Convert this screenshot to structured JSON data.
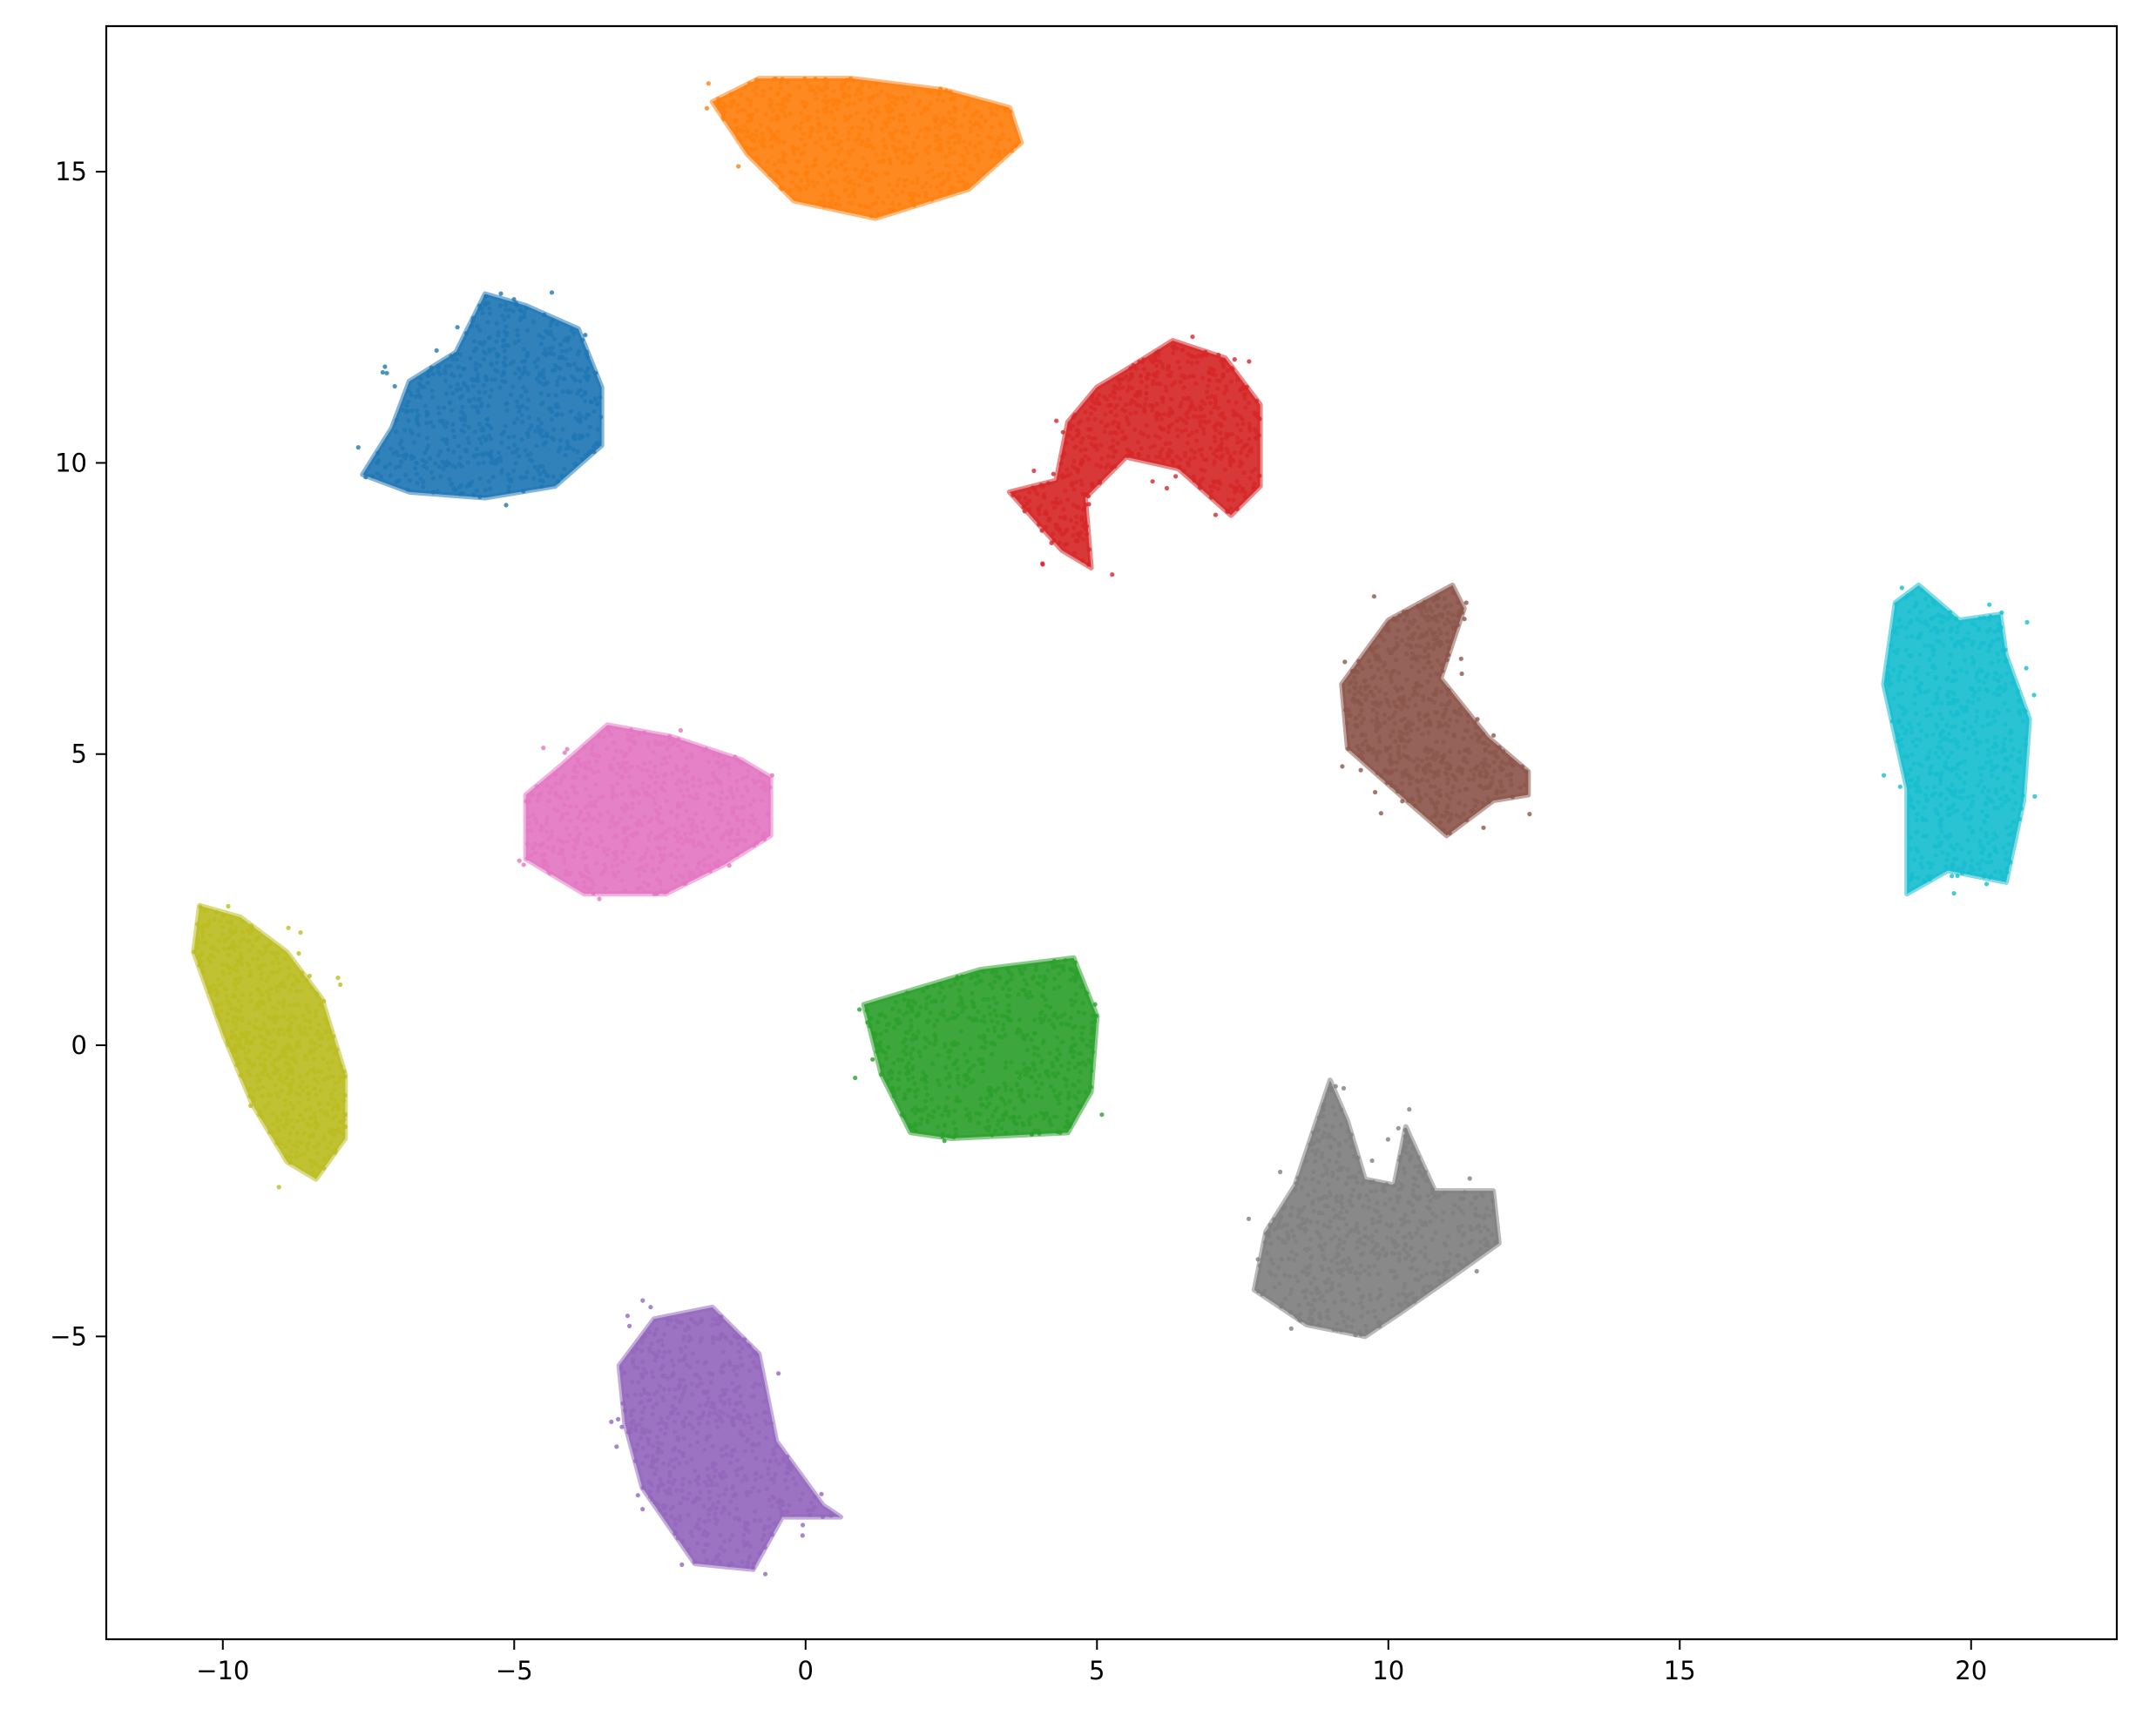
{
  "chart_data": {
    "type": "scatter",
    "title": "",
    "xlabel": "",
    "ylabel": "",
    "xlim": [
      -12.0,
      22.5
    ],
    "ylim": [
      -10.2,
      17.5
    ],
    "grid": false,
    "legend": "none",
    "x_ticks": [
      -10,
      -5,
      0,
      5,
      10,
      15,
      20
    ],
    "y_ticks": [
      -5,
      0,
      5,
      10,
      15
    ],
    "x_tick_labels": [
      "−10",
      "−5",
      "0",
      "5",
      "10",
      "15",
      "20"
    ],
    "y_tick_labels": [
      "−5",
      "0",
      "5",
      "10",
      "15"
    ],
    "point_count_per_cluster": 650,
    "series": [
      {
        "color": "#1f77b4",
        "center": [
          -5.3,
          11.0
        ],
        "outline": [
          [
            -7.6,
            9.8
          ],
          [
            -7.1,
            10.6
          ],
          [
            -6.8,
            11.4
          ],
          [
            -6.0,
            11.9
          ],
          [
            -5.5,
            12.9
          ],
          [
            -4.8,
            12.7
          ],
          [
            -3.9,
            12.3
          ],
          [
            -3.5,
            11.3
          ],
          [
            -3.5,
            10.3
          ],
          [
            -4.3,
            9.6
          ],
          [
            -5.5,
            9.4
          ],
          [
            -6.8,
            9.5
          ]
        ]
      },
      {
        "color": "#ff7f0e",
        "center": [
          1.0,
          15.5
        ],
        "outline": [
          [
            -1.6,
            16.2
          ],
          [
            -0.8,
            16.6
          ],
          [
            0.8,
            16.6
          ],
          [
            2.4,
            16.4
          ],
          [
            3.5,
            16.1
          ],
          [
            3.7,
            15.5
          ],
          [
            2.8,
            14.7
          ],
          [
            1.2,
            14.2
          ],
          [
            -0.2,
            14.5
          ],
          [
            -1.0,
            15.3
          ]
        ]
      },
      {
        "color": "#2ca02c",
        "center": [
          3.2,
          0.0
        ],
        "outline": [
          [
            1.0,
            0.7
          ],
          [
            3.0,
            1.3
          ],
          [
            4.6,
            1.5
          ],
          [
            5.0,
            0.5
          ],
          [
            4.9,
            -0.8
          ],
          [
            4.5,
            -1.5
          ],
          [
            2.5,
            -1.6
          ],
          [
            1.8,
            -1.5
          ],
          [
            1.3,
            -0.5
          ]
        ]
      },
      {
        "color": "#d62728",
        "center": [
          6.2,
          10.8
        ],
        "outline": [
          [
            5.5,
            11.6
          ],
          [
            6.3,
            12.1
          ],
          [
            7.2,
            11.8
          ],
          [
            7.8,
            11.0
          ],
          [
            7.8,
            9.6
          ],
          [
            7.3,
            9.1
          ],
          [
            6.4,
            9.9
          ],
          [
            5.5,
            10.1
          ],
          [
            4.8,
            9.4
          ],
          [
            4.9,
            8.2
          ],
          [
            4.4,
            8.5
          ],
          [
            3.5,
            9.5
          ],
          [
            4.3,
            9.7
          ],
          [
            4.5,
            10.7
          ],
          [
            5.0,
            11.3
          ]
        ]
      },
      {
        "color": "#9467bd",
        "center": [
          -1.6,
          -6.6
        ],
        "outline": [
          [
            -3.2,
            -5.5
          ],
          [
            -2.6,
            -4.7
          ],
          [
            -1.6,
            -4.5
          ],
          [
            -0.8,
            -5.3
          ],
          [
            -0.5,
            -6.8
          ],
          [
            0.3,
            -7.9
          ],
          [
            0.6,
            -8.1
          ],
          [
            -0.4,
            -8.1
          ],
          [
            -0.9,
            -9.0
          ],
          [
            -1.9,
            -8.9
          ],
          [
            -2.8,
            -7.6
          ],
          [
            -3.1,
            -6.5
          ]
        ]
      },
      {
        "color": "#8c564b",
        "center": [
          10.6,
          5.8
        ],
        "outline": [
          [
            9.2,
            6.2
          ],
          [
            10.0,
            7.3
          ],
          [
            11.1,
            7.9
          ],
          [
            11.3,
            7.5
          ],
          [
            10.9,
            6.3
          ],
          [
            11.7,
            5.3
          ],
          [
            12.4,
            4.7
          ],
          [
            12.4,
            4.3
          ],
          [
            11.8,
            4.2
          ],
          [
            11.0,
            3.6
          ],
          [
            10.2,
            4.3
          ],
          [
            9.3,
            5.1
          ]
        ]
      },
      {
        "color": "#e377c2",
        "center": [
          -2.3,
          4.0
        ],
        "outline": [
          [
            -4.8,
            4.3
          ],
          [
            -4.2,
            4.8
          ],
          [
            -3.4,
            5.5
          ],
          [
            -2.3,
            5.3
          ],
          [
            -1.1,
            4.9
          ],
          [
            -0.6,
            4.6
          ],
          [
            -0.6,
            3.6
          ],
          [
            -1.4,
            3.1
          ],
          [
            -2.4,
            2.6
          ],
          [
            -3.8,
            2.6
          ],
          [
            -4.8,
            3.2
          ]
        ]
      },
      {
        "color": "#7f7f7f",
        "center": [
          10.0,
          -3.3
        ],
        "outline": [
          [
            9.0,
            -0.6
          ],
          [
            9.3,
            -1.3
          ],
          [
            9.6,
            -2.3
          ],
          [
            10.1,
            -2.4
          ],
          [
            10.3,
            -1.4
          ],
          [
            10.8,
            -2.5
          ],
          [
            11.8,
            -2.5
          ],
          [
            11.9,
            -3.4
          ],
          [
            11.2,
            -3.9
          ],
          [
            10.2,
            -4.6
          ],
          [
            9.6,
            -5.0
          ],
          [
            8.6,
            -4.8
          ],
          [
            7.7,
            -4.2
          ],
          [
            7.9,
            -3.2
          ],
          [
            8.4,
            -2.4
          ]
        ]
      },
      {
        "color": "#bcbd22",
        "center": [
          -9.0,
          0.0
        ],
        "outline": [
          [
            -10.4,
            2.4
          ],
          [
            -9.7,
            2.2
          ],
          [
            -8.9,
            1.6
          ],
          [
            -8.3,
            0.8
          ],
          [
            -7.9,
            -0.5
          ],
          [
            -7.9,
            -1.6
          ],
          [
            -8.4,
            -2.3
          ],
          [
            -8.9,
            -2.0
          ],
          [
            -9.5,
            -1.0
          ],
          [
            -10.0,
            0.2
          ],
          [
            -10.5,
            1.6
          ]
        ]
      },
      {
        "color": "#17becf",
        "center": [
          19.8,
          5.4
        ],
        "outline": [
          [
            18.5,
            6.2
          ],
          [
            18.7,
            7.6
          ],
          [
            19.1,
            7.9
          ],
          [
            19.8,
            7.3
          ],
          [
            20.5,
            7.4
          ],
          [
            20.6,
            6.7
          ],
          [
            21.0,
            5.6
          ],
          [
            20.9,
            4.2
          ],
          [
            20.6,
            2.8
          ],
          [
            19.6,
            3.0
          ],
          [
            18.9,
            2.6
          ],
          [
            18.9,
            4.4
          ]
        ]
      }
    ]
  }
}
